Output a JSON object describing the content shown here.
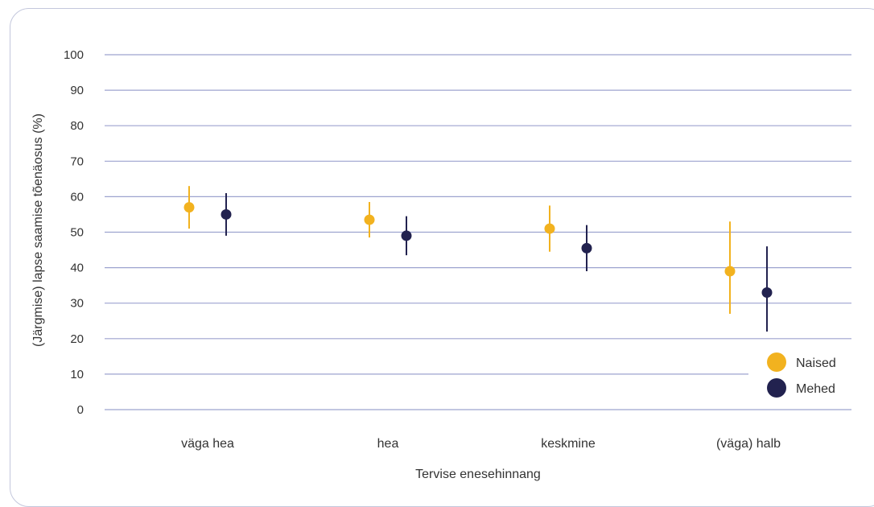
{
  "chart_data": {
    "type": "scatter",
    "title": "",
    "xlabel": "Tervise enesehinnang",
    "ylabel": "(Järgmise) lapse saamise tõenäosus (%)",
    "ylim": [
      0,
      100
    ],
    "yticks": [
      0,
      10,
      20,
      30,
      40,
      50,
      60,
      70,
      80,
      90,
      100
    ],
    "categories": [
      "väga hea",
      "hea",
      "keskmine",
      "(väga) halb"
    ],
    "grid": true,
    "legend_position": "bottom-right",
    "series": [
      {
        "name": "Naised",
        "color": "#f2b21f",
        "values": [
          57,
          53.5,
          51,
          39
        ],
        "lower": [
          51,
          48.5,
          44.5,
          27
        ],
        "upper": [
          63,
          58.5,
          57.5,
          53
        ]
      },
      {
        "name": "Mehed",
        "color": "#22224f",
        "values": [
          55,
          49,
          45.5,
          33
        ],
        "lower": [
          49,
          43.5,
          39,
          22
        ],
        "upper": [
          61,
          54.5,
          52,
          46
        ]
      }
    ]
  }
}
